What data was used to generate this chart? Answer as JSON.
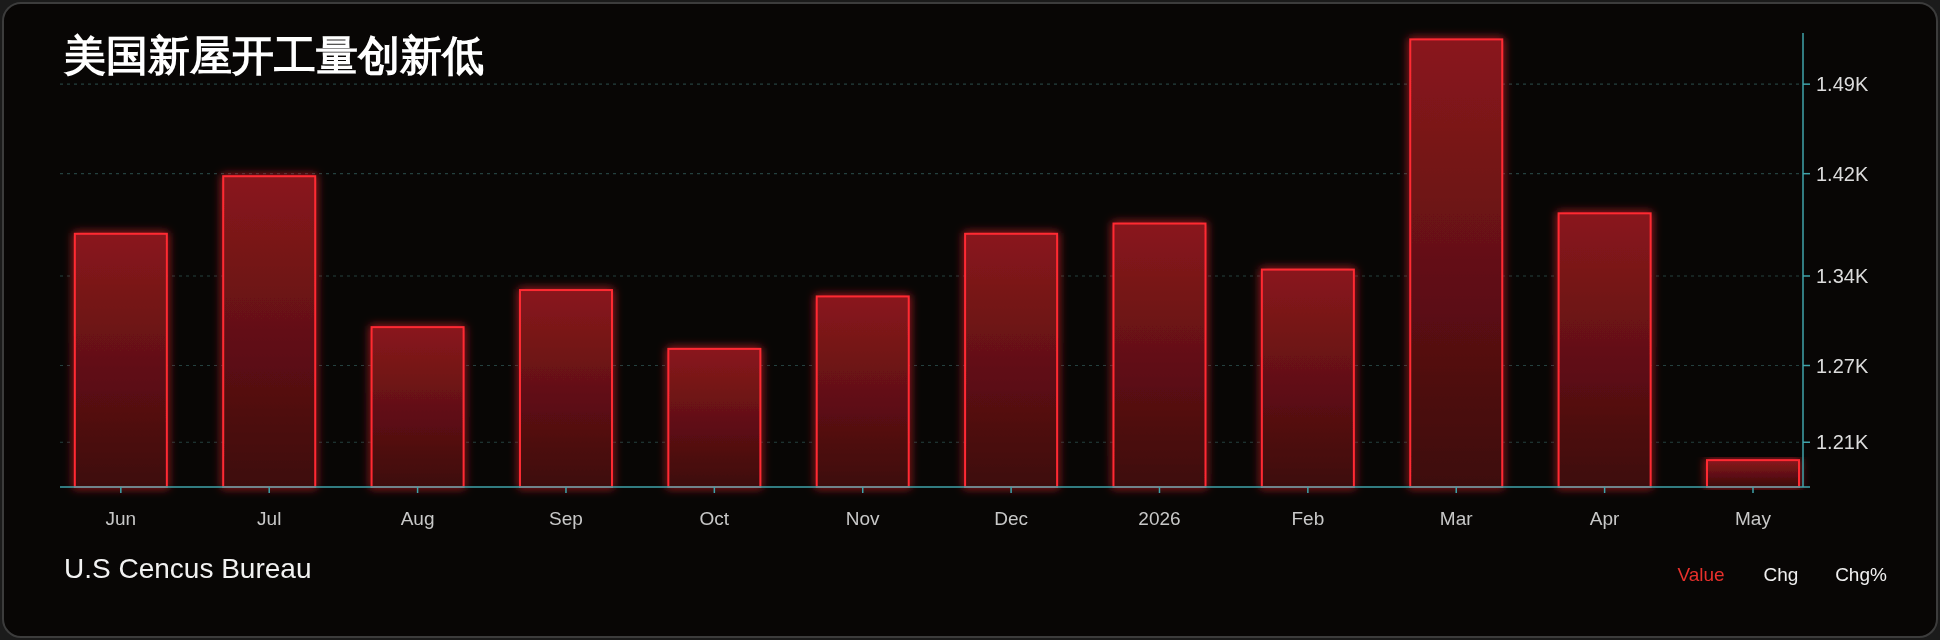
{
  "chart_data": {
    "type": "bar",
    "title": "美国新屋开工量创新低",
    "categories": [
      "Jun",
      "Jul",
      "Aug",
      "Sep",
      "Oct",
      "Nov",
      "Dec",
      "2026",
      "Feb",
      "Mar",
      "Apr",
      "May"
    ],
    "values": [
      1373,
      1418,
      1300,
      1329,
      1283,
      1324,
      1373,
      1381,
      1345,
      1525,
      1389,
      1196
    ],
    "color": "#ff2a33",
    "ylim": [
      1175,
      1530
    ],
    "yticks": [
      {
        "value": 1210,
        "label": "1.21K"
      },
      {
        "value": 1270,
        "label": "1.27K"
      },
      {
        "value": 1340,
        "label": "1.34K"
      },
      {
        "value": 1420,
        "label": "1.42K"
      },
      {
        "value": 1490,
        "label": "1.49K"
      }
    ],
    "grid": "y",
    "annotations": [
      "U.S Cencus Bureau",
      "Value",
      "Chg",
      "Chg%"
    ]
  }
}
